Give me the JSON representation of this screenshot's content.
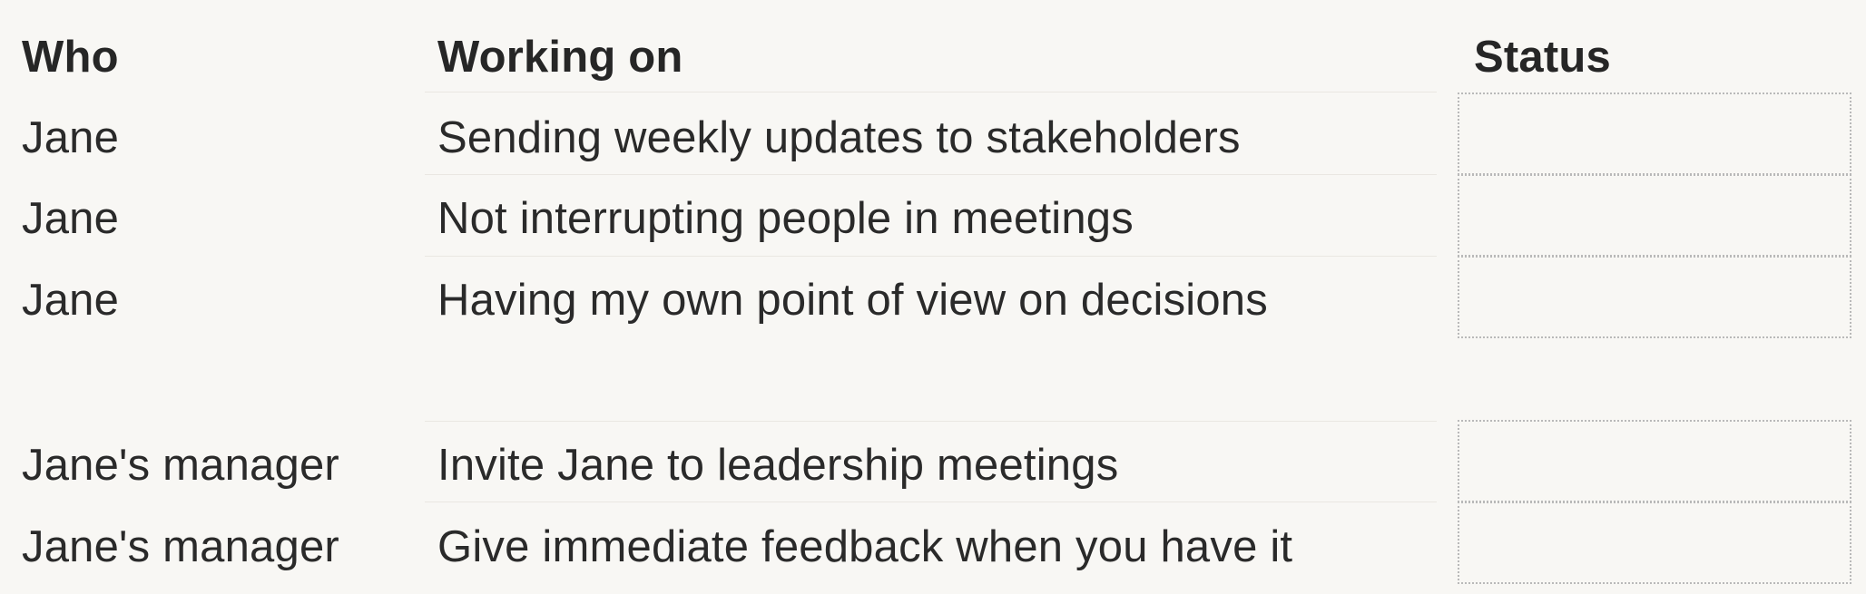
{
  "table": {
    "headers": {
      "who": "Who",
      "working_on": "Working on",
      "status": "Status"
    },
    "rows": [
      {
        "who": "Jane",
        "working_on": "Sending weekly updates to stakeholders",
        "status": ""
      },
      {
        "who": "Jane",
        "working_on": "Not interrupting people in meetings",
        "status": ""
      },
      {
        "who": "Jane",
        "working_on": "Having my own point of view on decisions",
        "status": ""
      },
      {
        "who": "Jane's manager",
        "working_on": "Invite Jane to leadership meetings",
        "status": ""
      },
      {
        "who": "Jane's manager",
        "working_on": "Give immediate feedback when you have it",
        "status": ""
      }
    ]
  }
}
